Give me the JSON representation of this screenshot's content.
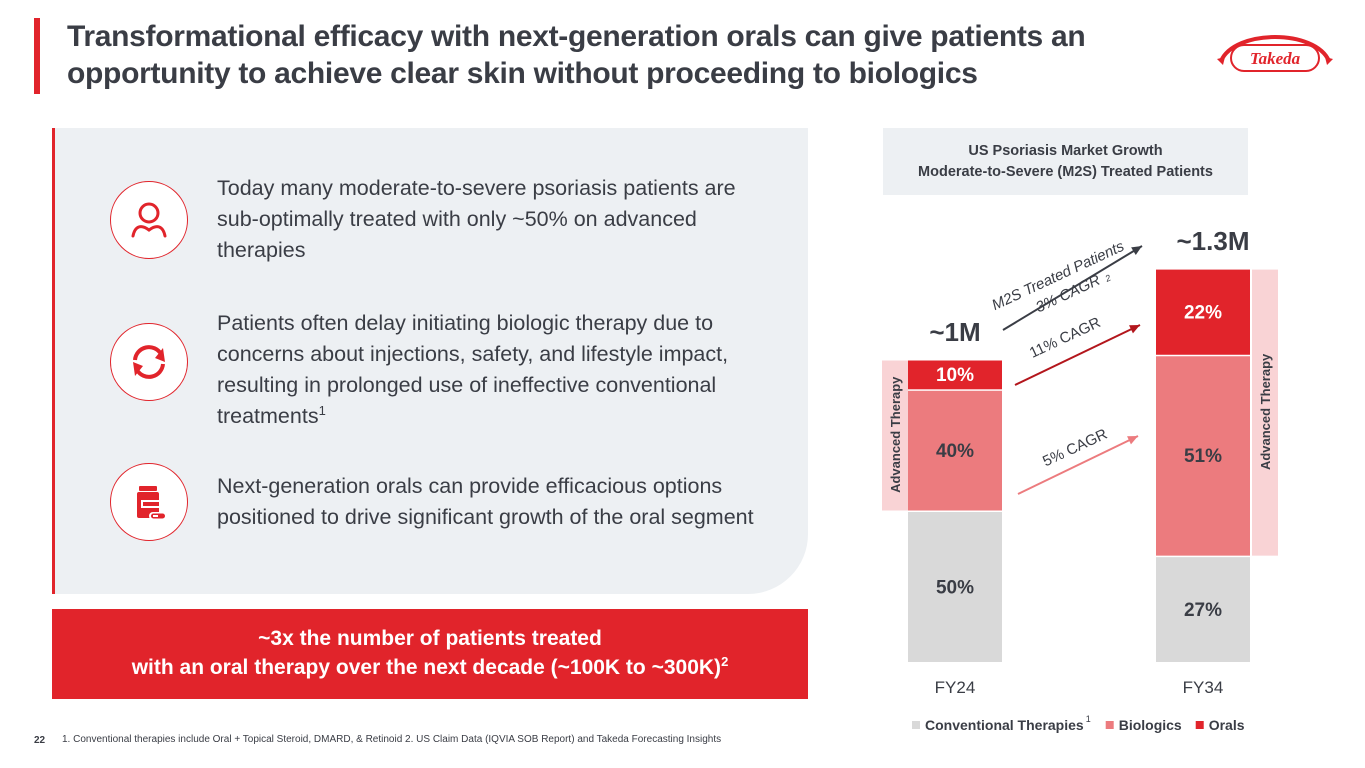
{
  "slide": {
    "title_line1": "Transformational efficacy with next-generation orals can give patients an",
    "title_line2": "opportunity to achieve clear skin without proceeding to biologics",
    "logo_text": "Takeda",
    "page_number": "22",
    "footnote": "1. Conventional therapies include Oral + Topical Steroid, DMARD, & Retinoid 2. US Claim Data (IQVIA SOB Report) and Takeda Forecasting Insights"
  },
  "points": [
    {
      "icon": "person-icon",
      "text": "Today many moderate-to-severe psoriasis patients are sub-optimally treated with only ~50% on advanced therapies",
      "sup": ""
    },
    {
      "icon": "cycle-arrows-icon",
      "text": "Patients often delay initiating biologic therapy due to concerns about injections, safety, and lifestyle impact, resulting in prolonged use of ineffective conventional treatments",
      "sup": "1"
    },
    {
      "icon": "pill-bottle-icon",
      "text": "Next-generation orals can provide efficacious options positioned to drive significant growth of the oral segment",
      "sup": ""
    }
  ],
  "callout": {
    "line1": "~3x the number of patients treated",
    "line2": "with an oral therapy over the next decade (~100K to ~300K)",
    "sup": "2"
  },
  "colors": {
    "brand_red": "#e1242b",
    "biologics": "#ec7b7e",
    "conventional": "#d9d9d9",
    "advanced_band": "#f9d3d5",
    "dark_arrow": "#3a3d45",
    "orals_arrow": "#b3161c",
    "biologics_arrow": "#ec7b7e"
  },
  "chart_data": {
    "type": "bar",
    "stacked": true,
    "title": "US Psoriasis Market Growth",
    "subtitle": "Moderate-to-Severe (M2S) Treated Patients",
    "categories": [
      "FY24",
      "FY34"
    ],
    "totals": [
      "~1M",
      "~1.3M"
    ],
    "total_values_millions": [
      1.0,
      1.3
    ],
    "series": [
      {
        "name": "Conventional Therapies",
        "legend_sup": "1",
        "values": [
          50,
          27
        ],
        "labels": [
          "50%",
          "27%"
        ]
      },
      {
        "name": "Biologics",
        "legend_sup": "",
        "values": [
          40,
          51
        ],
        "labels": [
          "40%",
          "51%"
        ]
      },
      {
        "name": "Orals",
        "legend_sup": "",
        "values": [
          10,
          22
        ],
        "labels": [
          "10%",
          "22%"
        ]
      }
    ],
    "unit": "% of treated patients",
    "band_label": "Advanced Therapy",
    "annotations": [
      {
        "id": "total",
        "line1": "M2S Treated Patients",
        "line2": "3% CAGR",
        "sup": "2"
      },
      {
        "id": "orals",
        "label": "11% CAGR"
      },
      {
        "id": "biologics",
        "label": "5% CAGR"
      }
    ],
    "legend_position": "bottom"
  }
}
